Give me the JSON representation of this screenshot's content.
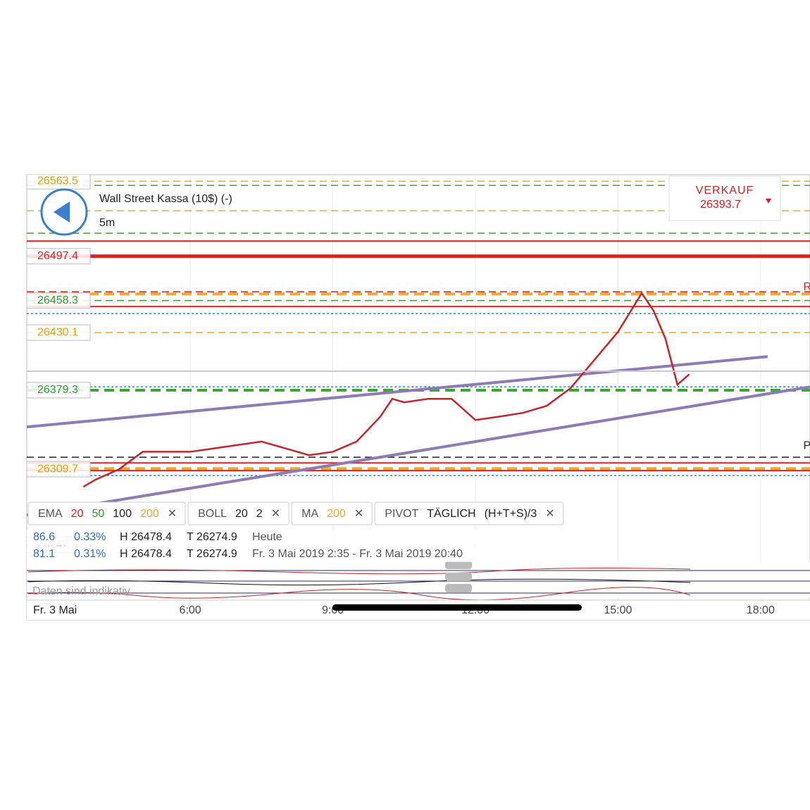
{
  "header": {
    "title": "Wall Street Kassa (10$) (-)",
    "interval": "5m"
  },
  "sell": {
    "label": "VERKAUF",
    "price": "26393.7"
  },
  "chart_data": {
    "type": "line",
    "xlim": [
      2.56,
      19.04
    ],
    "ylim": [
      26180,
      26568
    ],
    "xticks": [
      {
        "value": 6,
        "label": "6:00"
      },
      {
        "value": 9,
        "label": "9:00"
      },
      {
        "value": 12,
        "label": "12:00"
      },
      {
        "value": 15,
        "label": "15:00"
      },
      {
        "value": 18,
        "label": "18:00"
      }
    ],
    "date_label": "Fr. 3 Mai",
    "series": [
      {
        "color": "#c0272d",
        "x": [
          3.75,
          4.0,
          4.5,
          5.0,
          5.5,
          6.0,
          6.5,
          7.0,
          7.5,
          8.0,
          8.5,
          9.0,
          9.5,
          10.0,
          10.25,
          10.5,
          11.0,
          11.5,
          12.0,
          12.5,
          13.0,
          13.5,
          14.0,
          14.5,
          15.0,
          15.5,
          15.75,
          16.0,
          16.25,
          16.5
        ],
        "values": [
          26294.1,
          26300.3,
          26309.6,
          26325.0,
          26325.0,
          26325.0,
          26328.0,
          26331.0,
          26334.0,
          26328.0,
          26322.0,
          26325.0,
          26334.0,
          26356.0,
          26371.7,
          26368.6,
          26371.7,
          26371.7,
          26353.0,
          26356.0,
          26359.3,
          26365.5,
          26381.0,
          26405.8,
          26430.7,
          26464.8,
          26449.3,
          26424.5,
          26384.1,
          26393.4
        ]
      }
    ],
    "trend_lines": [
      {
        "color": "#8e7bb5",
        "x": [
          2.56,
          18.15
        ],
        "values": [
          26346.9,
          26408.9
        ]
      },
      {
        "color": "#8e7bb5",
        "x": [
          2.56,
          19.04
        ],
        "values": [
          26269.3,
          26382.2
        ]
      }
    ],
    "levels": [
      {
        "value": 26563.5,
        "color": "#f0a830",
        "style": "dashed"
      },
      {
        "value": 26559.8,
        "color": "#3aa835",
        "style": "dashed"
      },
      {
        "value": 26537.4,
        "color": "#f0a830",
        "style": "dashed"
      },
      {
        "value": 26517.6,
        "color": "#3aa835",
        "style": "dashed"
      },
      {
        "value": 26510.7,
        "color": "#e02020",
        "style": "solid"
      },
      {
        "value": 26497.4,
        "color": "#e02020",
        "style": "thick"
      },
      {
        "value": 26466.0,
        "color": "#e02020",
        "style": "dashed"
      },
      {
        "value": 26464.1,
        "color": "#f0a830",
        "style": "thick-dashed"
      },
      {
        "value": 26458.3,
        "color": "#3aa835",
        "style": "dashed"
      },
      {
        "value": 26453.0,
        "color": "#e02020",
        "style": "solid"
      },
      {
        "value": 26446.8,
        "color": "#3a7fd0",
        "style": "dotted"
      },
      {
        "value": 26430.1,
        "color": "#f0a830",
        "style": "dashed"
      },
      {
        "value": 26382.2,
        "color": "#3a7fd0",
        "style": "dotted"
      },
      {
        "value": 26379.3,
        "color": "#3aa835",
        "style": "thick-dashed"
      },
      {
        "value": 26320.2,
        "color": "#222222",
        "style": "dashed"
      },
      {
        "value": 26315.2,
        "color": "#e02020",
        "style": "solid"
      },
      {
        "value": 26310.2,
        "color": "#f0a830",
        "style": "thick-dashed"
      },
      {
        "value": 26308.4,
        "color": "#e02020",
        "style": "solid"
      },
      {
        "value": 26304.1,
        "color": "#3a7fd0",
        "style": "dotted"
      }
    ],
    "price_labels": [
      {
        "value": 26563.5,
        "color": "#e0a000"
      },
      {
        "value": 26497.4,
        "color": "#e02020"
      },
      {
        "value": 26458.3,
        "color": "#2f9a2f"
      },
      {
        "value": 26430.1,
        "color": "#e0a000"
      },
      {
        "value": 26379.3,
        "color": "#2f9a2f"
      },
      {
        "value": 26309.7,
        "color": "#e0a000"
      },
      {
        "value": 26242.9,
        "color": "#f3b8b8"
      }
    ],
    "annotations": [
      {
        "text": "R",
        "x": 18.9,
        "value": 26470,
        "color": "#e02020"
      },
      {
        "text": "Pi",
        "x": 18.9,
        "value": 26330,
        "color": "#222222"
      }
    ]
  },
  "indicators": [
    {
      "items": [
        {
          "text": "EMA",
          "color": "#555555"
        },
        {
          "text": "20",
          "color": "#e02020"
        },
        {
          "text": "50",
          "color": "#2f9a2f"
        },
        {
          "text": "100",
          "color": "#222222"
        },
        {
          "text": "200",
          "color": "#f0a830"
        },
        {
          "text": "✕",
          "color": "#555555"
        }
      ]
    },
    {
      "items": [
        {
          "text": "BOLL",
          "color": "#555555"
        },
        {
          "text": "20",
          "color": "#222222"
        },
        {
          "text": "2",
          "color": "#222222"
        },
        {
          "text": "✕",
          "color": "#555555"
        }
      ]
    },
    {
      "items": [
        {
          "text": "MA",
          "color": "#555555"
        },
        {
          "text": "200",
          "color": "#f0a830"
        },
        {
          "text": "✕",
          "color": "#555555"
        }
      ]
    },
    {
      "items": [
        {
          "text": "PIVOT",
          "color": "#555555"
        },
        {
          "text": "TÄGLICH",
          "color": "#222222"
        },
        {
          "text": "(H+T+S)/3",
          "color": "#222222"
        },
        {
          "text": "✕",
          "color": "#555555"
        }
      ]
    }
  ],
  "stats": [
    {
      "cells": [
        "86.6",
        "0.33%",
        "H 26478.4",
        "T 26274.9",
        "Heute"
      ]
    },
    {
      "cells": [
        "81.1",
        "0.31%",
        "H 26478.4",
        "T 26274.9",
        "Fr. 3 Mai 2019 2:35 - Fr. 3 Mai 2019 20:40"
      ]
    }
  ],
  "note": "Daten sind indikativ"
}
